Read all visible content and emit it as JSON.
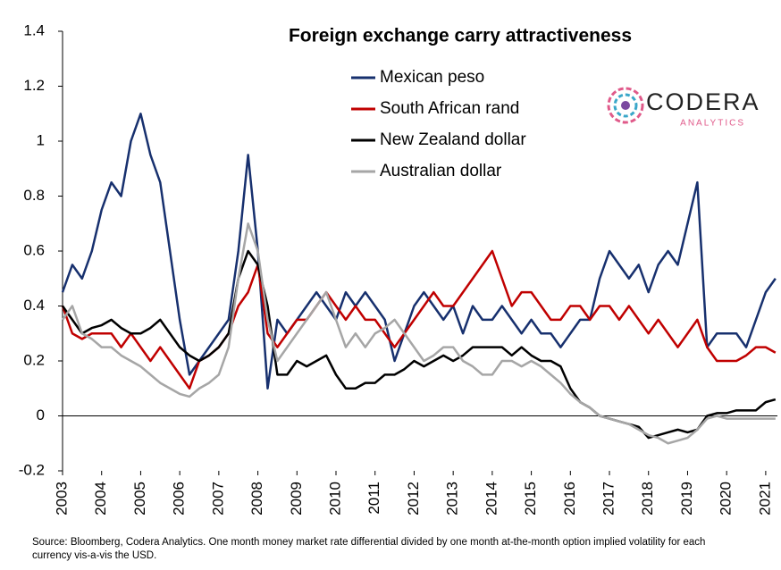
{
  "chart_data": {
    "type": "line",
    "title": "Foreign exchange carry attractiveness",
    "x": [
      2003,
      2003.25,
      2003.5,
      2003.75,
      2004,
      2004.25,
      2004.5,
      2004.75,
      2005,
      2005.25,
      2005.5,
      2005.75,
      2006,
      2006.25,
      2006.5,
      2006.75,
      2007,
      2007.25,
      2007.5,
      2007.75,
      2008,
      2008.25,
      2008.5,
      2008.75,
      2009,
      2009.25,
      2009.5,
      2009.75,
      2010,
      2010.25,
      2010.5,
      2010.75,
      2011,
      2011.25,
      2011.5,
      2011.75,
      2012,
      2012.25,
      2012.5,
      2012.75,
      2013,
      2013.25,
      2013.5,
      2013.75,
      2014,
      2014.25,
      2014.5,
      2014.75,
      2015,
      2015.25,
      2015.5,
      2015.75,
      2016,
      2016.25,
      2016.5,
      2016.75,
      2017,
      2017.25,
      2017.5,
      2017.75,
      2018,
      2018.25,
      2018.5,
      2018.75,
      2019,
      2019.25,
      2019.5,
      2019.75,
      2020,
      2020.25,
      2020.5,
      2020.75,
      2021,
      2021.25
    ],
    "series": [
      {
        "name": "Mexican peso",
        "color": "#17306e",
        "values": [
          0.45,
          0.55,
          0.5,
          0.6,
          0.75,
          0.85,
          0.8,
          1.0,
          1.1,
          0.95,
          0.85,
          0.6,
          0.35,
          0.15,
          0.2,
          0.25,
          0.3,
          0.35,
          0.6,
          0.95,
          0.6,
          0.1,
          0.35,
          0.3,
          0.35,
          0.4,
          0.45,
          0.4,
          0.35,
          0.45,
          0.4,
          0.45,
          0.4,
          0.35,
          0.2,
          0.3,
          0.4,
          0.45,
          0.4,
          0.35,
          0.4,
          0.3,
          0.4,
          0.35,
          0.35,
          0.4,
          0.35,
          0.3,
          0.35,
          0.3,
          0.3,
          0.25,
          0.3,
          0.35,
          0.35,
          0.5,
          0.6,
          0.55,
          0.5,
          0.55,
          0.45,
          0.55,
          0.6,
          0.55,
          0.7,
          0.85,
          0.25,
          0.3,
          0.3,
          0.3,
          0.25,
          0.35,
          0.45,
          0.5
        ]
      },
      {
        "name": "South African rand",
        "color": "#c00000",
        "values": [
          0.4,
          0.3,
          0.28,
          0.3,
          0.3,
          0.3,
          0.25,
          0.3,
          0.25,
          0.2,
          0.25,
          0.2,
          0.15,
          0.1,
          0.2,
          0.22,
          0.25,
          0.3,
          0.4,
          0.45,
          0.55,
          0.3,
          0.25,
          0.3,
          0.35,
          0.35,
          0.4,
          0.45,
          0.4,
          0.35,
          0.4,
          0.35,
          0.35,
          0.3,
          0.25,
          0.3,
          0.35,
          0.4,
          0.45,
          0.4,
          0.4,
          0.45,
          0.5,
          0.55,
          0.6,
          0.5,
          0.4,
          0.45,
          0.45,
          0.4,
          0.35,
          0.35,
          0.4,
          0.4,
          0.35,
          0.4,
          0.4,
          0.35,
          0.4,
          0.35,
          0.3,
          0.35,
          0.3,
          0.25,
          0.3,
          0.35,
          0.25,
          0.2,
          0.2,
          0.2,
          0.22,
          0.25,
          0.25,
          0.23
        ]
      },
      {
        "name": "New Zealand dollar",
        "color": "#000000",
        "values": [
          0.4,
          0.35,
          0.3,
          0.32,
          0.33,
          0.35,
          0.32,
          0.3,
          0.3,
          0.32,
          0.35,
          0.3,
          0.25,
          0.22,
          0.2,
          0.22,
          0.25,
          0.3,
          0.5,
          0.6,
          0.55,
          0.4,
          0.15,
          0.15,
          0.2,
          0.18,
          0.2,
          0.22,
          0.15,
          0.1,
          0.1,
          0.12,
          0.12,
          0.15,
          0.15,
          0.17,
          0.2,
          0.18,
          0.2,
          0.22,
          0.2,
          0.22,
          0.25,
          0.25,
          0.25,
          0.25,
          0.22,
          0.25,
          0.22,
          0.2,
          0.2,
          0.18,
          0.1,
          0.05,
          0.03,
          0.0,
          -0.01,
          -0.02,
          -0.03,
          -0.04,
          -0.08,
          -0.07,
          -0.06,
          -0.05,
          -0.06,
          -0.05,
          0.0,
          0.01,
          0.01,
          0.02,
          0.02,
          0.02,
          0.05,
          0.06
        ]
      },
      {
        "name": "Australian dollar",
        "color": "#a6a6a6",
        "values": [
          0.35,
          0.4,
          0.3,
          0.28,
          0.25,
          0.25,
          0.22,
          0.2,
          0.18,
          0.15,
          0.12,
          0.1,
          0.08,
          0.07,
          0.1,
          0.12,
          0.15,
          0.25,
          0.5,
          0.7,
          0.6,
          0.35,
          0.2,
          0.25,
          0.3,
          0.35,
          0.4,
          0.45,
          0.35,
          0.25,
          0.3,
          0.25,
          0.3,
          0.32,
          0.35,
          0.3,
          0.25,
          0.2,
          0.22,
          0.25,
          0.25,
          0.2,
          0.18,
          0.15,
          0.15,
          0.2,
          0.2,
          0.18,
          0.2,
          0.18,
          0.15,
          0.12,
          0.08,
          0.05,
          0.03,
          0.0,
          -0.01,
          -0.02,
          -0.03,
          -0.05,
          -0.07,
          -0.08,
          -0.1,
          -0.09,
          -0.08,
          -0.05,
          -0.01,
          0.0,
          -0.01,
          -0.01,
          -0.01,
          -0.01,
          -0.01,
          -0.01
        ]
      }
    ],
    "xlim": [
      2003,
      2021.3
    ],
    "xticks": [
      2003,
      2004,
      2005,
      2006,
      2007,
      2008,
      2009,
      2010,
      2011,
      2012,
      2013,
      2014,
      2015,
      2016,
      2017,
      2018,
      2019,
      2020,
      2021
    ],
    "ylim": [
      -0.2,
      1.4
    ],
    "yticks": [
      1.4,
      1.2,
      1,
      0.8,
      0.6,
      0.4,
      0.2,
      0,
      -0.2
    ],
    "logo": {
      "name": "CODERA",
      "tagline": "ANALYTICS"
    },
    "source": "Source: Bloomberg, Codera Analytics. One month money market rate differential divided by one month at-the-month option implied volatility for each currency vis-a-vis the USD."
  }
}
